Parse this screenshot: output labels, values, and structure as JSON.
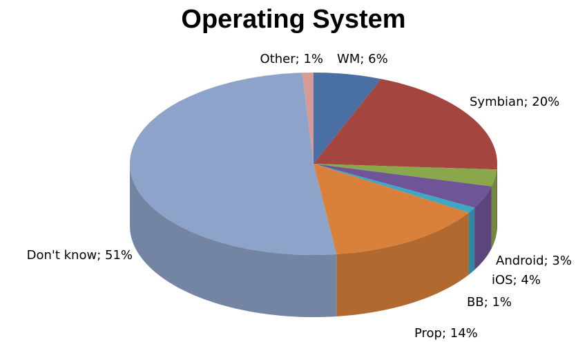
{
  "chart_data": {
    "type": "pie",
    "title": "Operating System",
    "values": [
      6,
      20,
      3,
      4,
      1,
      14,
      51,
      1
    ],
    "value_labels": [
      "WM; 6%",
      "Symbian; 20%",
      "Android; 3%",
      "iOS; 4%",
      "BB; 1%",
      "Prop; 14%",
      "Don't know; 51%",
      "Other; 1%"
    ],
    "colors": [
      "#4a6fa5",
      "#a5453f",
      "#8aa84b",
      "#6f5597",
      "#3ea7c4",
      "#d9813b",
      "#8ea3c9",
      "#d49b98"
    ]
  }
}
